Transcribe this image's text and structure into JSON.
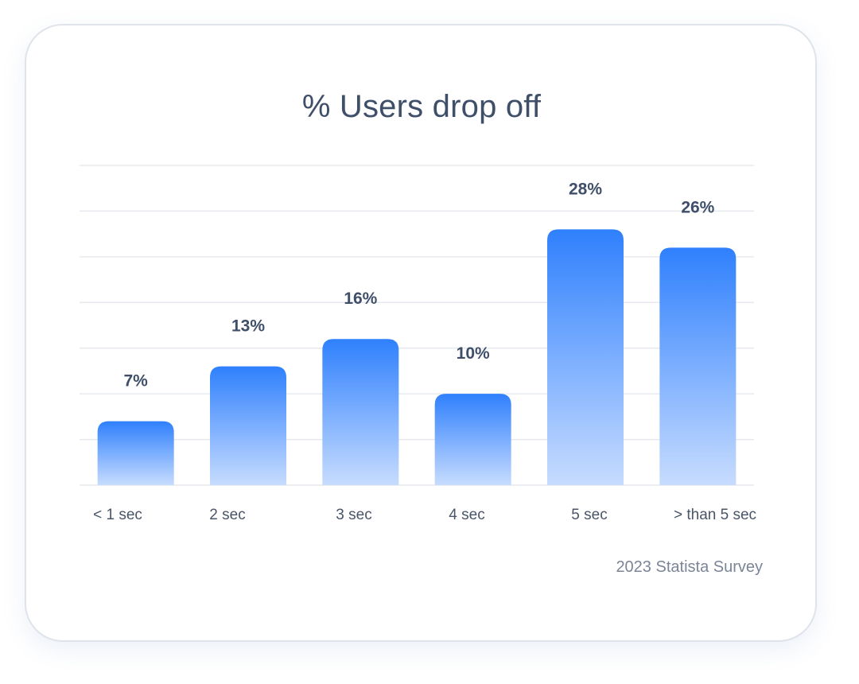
{
  "chart_data": {
    "type": "bar",
    "title": "% Users drop off",
    "categories": [
      "< 1 sec",
      "2 sec",
      "3 sec",
      "4 sec",
      "5 sec",
      "> than 5 sec"
    ],
    "values": [
      7,
      13,
      16,
      10,
      28,
      26
    ],
    "value_labels": [
      "7%",
      "13%",
      "16%",
      "10%",
      "28%",
      "26%"
    ],
    "unit": "%",
    "ylim": [
      0,
      35
    ],
    "grid": true,
    "bar_color_top": "#2f80fd",
    "bar_color_bottom": "#c7dcfe",
    "label_color": "#3f4f69"
  },
  "source": "2023 Statista Survey"
}
